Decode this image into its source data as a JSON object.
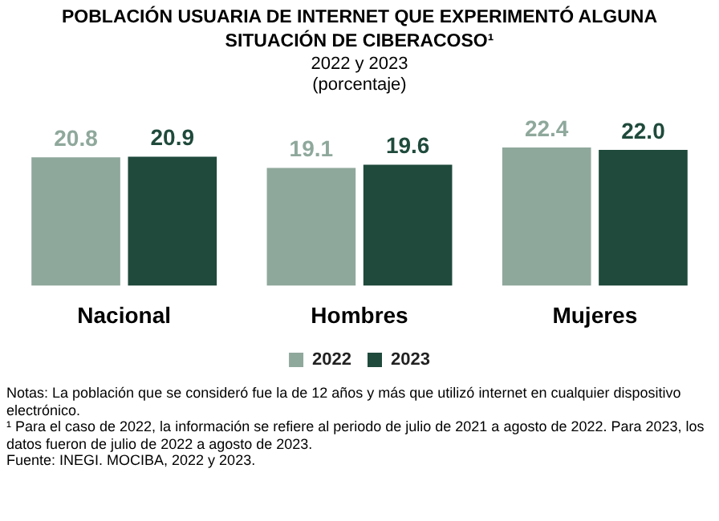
{
  "chart_data": {
    "type": "bar",
    "title": "POBLACIÓN USUARIA DE INTERNET QUE EXPERIMENTÓ ALGUNA SITUACIÓN DE CIBERACOSO¹",
    "subtitle": "2022 y 2023\n(porcentaje)",
    "categories": [
      "Nacional",
      "Hombres",
      "Mujeres"
    ],
    "series": [
      {
        "name": "2022",
        "color": "#8fa89c",
        "values": [
          20.8,
          19.1,
          22.4
        ],
        "value_labels": [
          "20.8",
          "19.1",
          "22.4"
        ]
      },
      {
        "name": "2023",
        "color": "#1f4a3c",
        "values": [
          20.9,
          19.6,
          22.0
        ],
        "value_labels": [
          "20.9",
          "19.6",
          "22.0"
        ]
      }
    ],
    "tick_labels": "x",
    "legend": "bottom",
    "grid": false,
    "annotations": [
      "Notas: La población que se consideró fue la de 12 años y más que utilizó internet en cualquier dispositivo electrónico.",
      "¹ Para el caso de 2022, la información se refiere al periodo de julio de 2021 a agosto de 2022. Para 2023, los datos fueron de julio de 2022 a agosto de 2023.",
      "Fuente: INEGI. MOCIBA, 2022 y 2023."
    ]
  }
}
